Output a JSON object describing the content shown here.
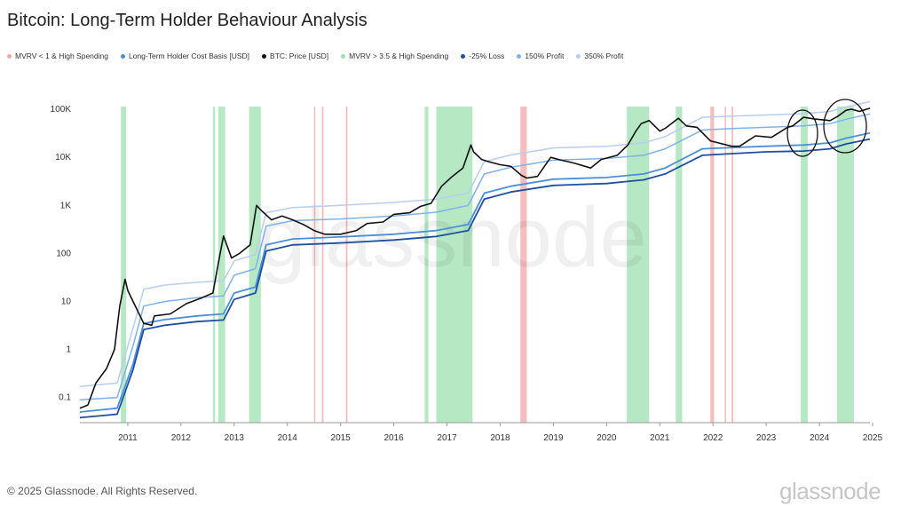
{
  "title": "Bitcoin: Long-Term Holder Behaviour Analysis",
  "legend": [
    {
      "label": "MVRV < 1 & High Spending",
      "color": "#f4a6a6"
    },
    {
      "label": "Long-Term Holder Cost Basis [USD]",
      "color": "#4a90d9"
    },
    {
      "label": "BTC: Price [USD]",
      "color": "#111111"
    },
    {
      "label": "MVRV > 3.5 & High Spending",
      "color": "#9fe0b0"
    },
    {
      "label": "-25% Loss",
      "color": "#1f4fa0"
    },
    {
      "label": "150% Profit",
      "color": "#7fb2ea"
    },
    {
      "label": "350% Profit",
      "color": "#b9cdee"
    }
  ],
  "footer": "© 2025 Glassnode. All Rights Reserved.",
  "logo": "glassnode",
  "watermark": "glassnode",
  "chart_data": {
    "type": "line",
    "yscale": "log",
    "ylim": [
      0.03,
      160000
    ],
    "xlim": [
      2010.6,
      2025.45
    ],
    "x_ticks": [
      "2011",
      "2012",
      "2013",
      "2014",
      "2015",
      "2016",
      "2017",
      "2018",
      "2019",
      "2020",
      "2021",
      "2022",
      "2023",
      "2024",
      "2025"
    ],
    "y_ticks": [
      {
        "value": 0.1,
        "label": "0.1"
      },
      {
        "value": 1,
        "label": "1"
      },
      {
        "value": 10,
        "label": "10"
      },
      {
        "value": 100,
        "label": "100"
      },
      {
        "value": 1000,
        "label": "1K"
      },
      {
        "value": 10000,
        "label": "10K"
      },
      {
        "value": 100000,
        "label": "100K"
      }
    ],
    "series": [
      {
        "name": "BTC: Price [USD]",
        "color": "#111111",
        "x": [
          2010.6,
          2010.75,
          2010.9,
          2011.1,
          2011.25,
          2011.35,
          2011.45,
          2011.5,
          2011.6,
          2011.8,
          2011.95,
          2012.0,
          2012.3,
          2012.6,
          2012.9,
          2013.1,
          2013.25,
          2013.3,
          2013.45,
          2013.6,
          2013.8,
          2013.92,
          2014.0,
          2014.2,
          2014.4,
          2014.6,
          2014.8,
          2015.0,
          2015.2,
          2015.5,
          2015.8,
          2016.0,
          2016.3,
          2016.5,
          2016.8,
          2017.0,
          2017.2,
          2017.4,
          2017.6,
          2017.8,
          2017.95,
          2018.0,
          2018.15,
          2018.3,
          2018.5,
          2018.7,
          2018.9,
          2019.0,
          2019.2,
          2019.45,
          2019.6,
          2019.9,
          2020.2,
          2020.4,
          2020.7,
          2020.9,
          2021.05,
          2021.15,
          2021.3,
          2021.5,
          2021.6,
          2021.85,
          2022.0,
          2022.2,
          2022.45,
          2022.6,
          2022.85,
          2023.0,
          2023.3,
          2023.6,
          2023.9,
          2024.0,
          2024.2,
          2024.4,
          2024.7,
          2024.85,
          2025.0,
          2025.1,
          2025.25,
          2025.45
        ],
        "y": [
          0.06,
          0.07,
          0.2,
          0.4,
          1.0,
          8,
          29,
          17,
          10,
          3.5,
          3.2,
          5,
          5.5,
          9,
          12,
          15,
          120,
          230,
          80,
          100,
          150,
          1000,
          800,
          500,
          600,
          500,
          400,
          300,
          250,
          250,
          300,
          420,
          450,
          650,
          700,
          950,
          1100,
          2500,
          4000,
          6000,
          18000,
          13000,
          9000,
          8000,
          7000,
          6500,
          4200,
          3700,
          4000,
          10000,
          9000,
          7500,
          6000,
          9000,
          11000,
          18000,
          35000,
          50000,
          58000,
          35000,
          40000,
          65000,
          45000,
          42000,
          22000,
          20000,
          17000,
          17000,
          28000,
          26000,
          42000,
          45000,
          68000,
          63000,
          58000,
          72000,
          95000,
          100000,
          90000,
          105000
        ]
      },
      {
        "name": "Long-Term Holder Cost Basis [USD]",
        "color": "#4a90d9",
        "x": [
          2010.6,
          2011.3,
          2011.6,
          2011.8,
          2012.2,
          2012.8,
          2013.3,
          2013.5,
          2013.9,
          2014.1,
          2014.6,
          2015.5,
          2016.5,
          2017.3,
          2017.9,
          2018.2,
          2018.7,
          2019.5,
          2020.5,
          2021.2,
          2021.6,
          2022.3,
          2022.9,
          2023.5,
          2024.2,
          2024.7,
          2025.0,
          2025.45
        ],
        "y": [
          0.05,
          0.06,
          0.5,
          3.5,
          4.2,
          5,
          5.5,
          15,
          20,
          150,
          200,
          220,
          250,
          300,
          400,
          1800,
          2500,
          3500,
          3800,
          4500,
          6000,
          15000,
          16000,
          17000,
          18000,
          20000,
          25000,
          32000
        ]
      },
      {
        "name": "-25% Loss",
        "color": "#1f4fa0",
        "x": [
          2010.6,
          2011.3,
          2011.6,
          2011.8,
          2012.2,
          2012.8,
          2013.3,
          2013.5,
          2013.9,
          2014.1,
          2014.6,
          2015.5,
          2016.5,
          2017.3,
          2017.9,
          2018.2,
          2018.7,
          2019.5,
          2020.5,
          2021.2,
          2021.6,
          2022.3,
          2022.9,
          2023.5,
          2024.2,
          2024.7,
          2025.0,
          2025.45
        ],
        "y": [
          0.038,
          0.045,
          0.38,
          2.6,
          3.2,
          3.8,
          4.1,
          11,
          15,
          112,
          150,
          165,
          190,
          225,
          300,
          1350,
          1900,
          2600,
          2850,
          3400,
          4500,
          11000,
          12000,
          13000,
          13500,
          15000,
          19000,
          24000
        ]
      },
      {
        "name": "150% Profit",
        "color": "#7fb2ea",
        "x": [
          2010.6,
          2011.3,
          2011.6,
          2011.8,
          2012.2,
          2012.8,
          2013.3,
          2013.5,
          2013.9,
          2014.1,
          2014.6,
          2015.5,
          2016.5,
          2017.3,
          2017.9,
          2018.2,
          2018.7,
          2019.5,
          2020.5,
          2021.2,
          2021.6,
          2022.3,
          2022.9,
          2023.5,
          2024.2,
          2024.7,
          2025.0,
          2025.45
        ],
        "y": [
          0.09,
          0.1,
          1.2,
          8,
          10,
          12,
          13,
          35,
          48,
          370,
          480,
          520,
          600,
          720,
          1000,
          4500,
          6200,
          8700,
          9500,
          11000,
          15000,
          37000,
          40000,
          42000,
          45000,
          50000,
          62000,
          80000
        ]
      },
      {
        "name": "350% Profit",
        "color": "#b9cdee",
        "x": [
          2010.6,
          2011.3,
          2011.6,
          2011.8,
          2012.2,
          2012.8,
          2013.3,
          2013.5,
          2013.9,
          2014.1,
          2014.6,
          2015.5,
          2016.5,
          2017.3,
          2017.9,
          2018.2,
          2018.7,
          2019.5,
          2020.5,
          2021.2,
          2021.6,
          2022.3,
          2022.9,
          2023.5,
          2024.2,
          2024.7,
          2025.0,
          2025.45
        ],
        "y": [
          0.17,
          0.2,
          2.8,
          18,
          22,
          25,
          27,
          70,
          95,
          700,
          900,
          1000,
          1150,
          1350,
          1800,
          8100,
          11200,
          15700,
          17000,
          20000,
          27000,
          68000,
          72000,
          76000,
          81000,
          90000,
          112000,
          144000
        ]
      }
    ],
    "bands": [
      {
        "name": "MVRV > 3.5 & High Spending",
        "color": "#9fe0b0",
        "ranges": [
          [
            2011.37,
            2011.47
          ],
          [
            2013.1,
            2013.14
          ],
          [
            2013.2,
            2013.33
          ],
          [
            2013.78,
            2014.0
          ],
          [
            2017.08,
            2017.15
          ],
          [
            2017.3,
            2017.98
          ],
          [
            2020.88,
            2021.3
          ],
          [
            2021.8,
            2021.92
          ],
          [
            2024.15,
            2024.28
          ],
          [
            2024.83,
            2025.15
          ]
        ]
      },
      {
        "name": "MVRV < 1 & High Spending",
        "color": "#f4a6a6",
        "ranges": [
          [
            2015.0,
            2015.02
          ],
          [
            2015.15,
            2015.18
          ],
          [
            2015.6,
            2015.63
          ],
          [
            2018.88,
            2019.0
          ],
          [
            2022.45,
            2022.52
          ],
          [
            2022.72,
            2022.74
          ],
          [
            2022.85,
            2022.88
          ]
        ]
      }
    ]
  }
}
